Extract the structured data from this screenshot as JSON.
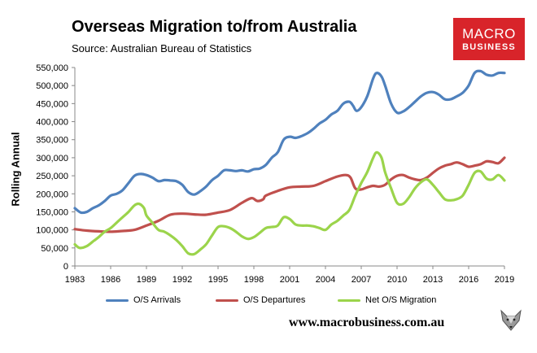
{
  "header": {
    "title": "Overseas Migration to/from Australia",
    "subtitle": "Source: Australian Bureau of Statistics"
  },
  "brand": {
    "line1": "MACRO",
    "line2": "BUSINESS",
    "website": "www.macrobusiness.com.au",
    "logo_icon": "fox-head-icon"
  },
  "colors": {
    "arrivals": "#4f81bd",
    "departures": "#c0504d",
    "net": "#9bd44b",
    "brand_red": "#d8242a"
  },
  "chart_data": {
    "type": "line",
    "title": "Overseas Migration to/from Australia",
    "subtitle": "Source: Australian Bureau of Statistics",
    "xlabel": "",
    "ylabel": "Rolling Annual",
    "xlim": [
      1983,
      2019
    ],
    "ylim": [
      0,
      550000
    ],
    "x_ticks": [
      1983,
      1986,
      1989,
      1992,
      1995,
      1998,
      2001,
      2004,
      2007,
      2010,
      2013,
      2016,
      2019
    ],
    "y_ticks": [
      0,
      50000,
      100000,
      150000,
      200000,
      250000,
      300000,
      350000,
      400000,
      450000,
      500000,
      550000
    ],
    "y_tick_labels": [
      "0",
      "50,000",
      "100,000",
      "150,000",
      "200,000",
      "250,000",
      "300,000",
      "350,000",
      "400,000",
      "450,000",
      "500,000",
      "550,000"
    ],
    "legend_position": "bottom",
    "series": [
      {
        "name": "O/S Arrivals",
        "color": "#4f81bd",
        "points": [
          [
            1983,
            160000
          ],
          [
            1983.5,
            148000
          ],
          [
            1984,
            150000
          ],
          [
            1984.5,
            160000
          ],
          [
            1985,
            168000
          ],
          [
            1985.5,
            180000
          ],
          [
            1986,
            195000
          ],
          [
            1986.5,
            200000
          ],
          [
            1987,
            210000
          ],
          [
            1987.5,
            230000
          ],
          [
            1988,
            250000
          ],
          [
            1988.5,
            255000
          ],
          [
            1989,
            252000
          ],
          [
            1989.5,
            245000
          ],
          [
            1990,
            235000
          ],
          [
            1990.5,
            238000
          ],
          [
            1991,
            237000
          ],
          [
            1991.5,
            235000
          ],
          [
            1992,
            225000
          ],
          [
            1992.5,
            205000
          ],
          [
            1993,
            198000
          ],
          [
            1993.5,
            207000
          ],
          [
            1994,
            220000
          ],
          [
            1994.5,
            238000
          ],
          [
            1995,
            250000
          ],
          [
            1995.5,
            265000
          ],
          [
            1996,
            265000
          ],
          [
            1996.5,
            263000
          ],
          [
            1997,
            265000
          ],
          [
            1997.5,
            262000
          ],
          [
            1998,
            268000
          ],
          [
            1998.5,
            270000
          ],
          [
            1999,
            280000
          ],
          [
            1999.5,
            300000
          ],
          [
            2000,
            315000
          ],
          [
            2000.5,
            350000
          ],
          [
            2001,
            358000
          ],
          [
            2001.5,
            355000
          ],
          [
            2002,
            360000
          ],
          [
            2002.5,
            368000
          ],
          [
            2003,
            380000
          ],
          [
            2003.5,
            395000
          ],
          [
            2004,
            405000
          ],
          [
            2004.5,
            420000
          ],
          [
            2005,
            430000
          ],
          [
            2005.5,
            450000
          ],
          [
            2006,
            455000
          ],
          [
            2006.3,
            445000
          ],
          [
            2006.6,
            430000
          ],
          [
            2007,
            440000
          ],
          [
            2007.5,
            470000
          ],
          [
            2008,
            520000
          ],
          [
            2008.3,
            535000
          ],
          [
            2008.7,
            525000
          ],
          [
            2009,
            500000
          ],
          [
            2009.5,
            450000
          ],
          [
            2010,
            425000
          ],
          [
            2010.5,
            428000
          ],
          [
            2011,
            440000
          ],
          [
            2011.5,
            455000
          ],
          [
            2012,
            470000
          ],
          [
            2012.5,
            480000
          ],
          [
            2013,
            482000
          ],
          [
            2013.5,
            475000
          ],
          [
            2014,
            462000
          ],
          [
            2014.5,
            462000
          ],
          [
            2015,
            470000
          ],
          [
            2015.5,
            480000
          ],
          [
            2016,
            500000
          ],
          [
            2016.5,
            535000
          ],
          [
            2017,
            540000
          ],
          [
            2017.5,
            530000
          ],
          [
            2018,
            528000
          ],
          [
            2018.5,
            535000
          ],
          [
            2019,
            535000
          ]
        ]
      },
      {
        "name": "O/S Departures",
        "color": "#c0504d",
        "points": [
          [
            1983,
            102000
          ],
          [
            1984,
            98000
          ],
          [
            1985,
            96000
          ],
          [
            1986,
            95000
          ],
          [
            1987,
            97000
          ],
          [
            1988,
            100000
          ],
          [
            1989,
            112000
          ],
          [
            1990,
            125000
          ],
          [
            1991,
            142000
          ],
          [
            1992,
            145000
          ],
          [
            1993,
            143000
          ],
          [
            1994,
            142000
          ],
          [
            1995,
            148000
          ],
          [
            1996,
            155000
          ],
          [
            1997,
            175000
          ],
          [
            1997.8,
            188000
          ],
          [
            1998.3,
            180000
          ],
          [
            1998.8,
            185000
          ],
          [
            1999,
            195000
          ],
          [
            2000,
            208000
          ],
          [
            2001,
            218000
          ],
          [
            2002,
            220000
          ],
          [
            2003,
            222000
          ],
          [
            2004,
            235000
          ],
          [
            2005,
            248000
          ],
          [
            2005.7,
            252000
          ],
          [
            2006.1,
            245000
          ],
          [
            2006.5,
            215000
          ],
          [
            2007,
            212000
          ],
          [
            2007.5,
            218000
          ],
          [
            2008,
            222000
          ],
          [
            2008.5,
            220000
          ],
          [
            2009,
            225000
          ],
          [
            2009.5,
            240000
          ],
          [
            2010,
            250000
          ],
          [
            2010.5,
            252000
          ],
          [
            2011,
            245000
          ],
          [
            2011.5,
            240000
          ],
          [
            2012,
            238000
          ],
          [
            2012.5,
            245000
          ],
          [
            2013,
            258000
          ],
          [
            2013.5,
            270000
          ],
          [
            2014,
            278000
          ],
          [
            2014.5,
            282000
          ],
          [
            2015,
            287000
          ],
          [
            2015.5,
            282000
          ],
          [
            2016,
            275000
          ],
          [
            2016.5,
            278000
          ],
          [
            2017,
            282000
          ],
          [
            2017.5,
            290000
          ],
          [
            2018,
            288000
          ],
          [
            2018.5,
            285000
          ],
          [
            2019,
            300000
          ]
        ]
      },
      {
        "name": "Net O/S Migration",
        "color": "#9bd44b",
        "points": [
          [
            1983,
            60000
          ],
          [
            1983.4,
            50000
          ],
          [
            1984,
            55000
          ],
          [
            1984.6,
            70000
          ],
          [
            1985,
            80000
          ],
          [
            1985.5,
            95000
          ],
          [
            1986,
            105000
          ],
          [
            1986.5,
            120000
          ],
          [
            1987,
            135000
          ],
          [
            1987.5,
            150000
          ],
          [
            1988,
            168000
          ],
          [
            1988.4,
            172000
          ],
          [
            1988.8,
            160000
          ],
          [
            1989,
            140000
          ],
          [
            1989.5,
            120000
          ],
          [
            1990,
            100000
          ],
          [
            1990.5,
            95000
          ],
          [
            1991,
            85000
          ],
          [
            1991.5,
            72000
          ],
          [
            1992,
            55000
          ],
          [
            1992.5,
            35000
          ],
          [
            1993,
            33000
          ],
          [
            1993.5,
            45000
          ],
          [
            1994,
            60000
          ],
          [
            1994.5,
            85000
          ],
          [
            1995,
            108000
          ],
          [
            1995.5,
            110000
          ],
          [
            1996,
            105000
          ],
          [
            1996.5,
            95000
          ],
          [
            1997,
            82000
          ],
          [
            1997.5,
            75000
          ],
          [
            1998,
            80000
          ],
          [
            1998.5,
            92000
          ],
          [
            1999,
            105000
          ],
          [
            1999.5,
            108000
          ],
          [
            2000,
            112000
          ],
          [
            2000.5,
            135000
          ],
          [
            2001,
            130000
          ],
          [
            2001.5,
            115000
          ],
          [
            2002,
            112000
          ],
          [
            2002.5,
            112000
          ],
          [
            2003,
            110000
          ],
          [
            2003.5,
            105000
          ],
          [
            2004,
            100000
          ],
          [
            2004.5,
            115000
          ],
          [
            2005,
            125000
          ],
          [
            2005.5,
            140000
          ],
          [
            2006,
            155000
          ],
          [
            2006.5,
            195000
          ],
          [
            2007,
            230000
          ],
          [
            2007.5,
            260000
          ],
          [
            2008,
            300000
          ],
          [
            2008.3,
            315000
          ],
          [
            2008.7,
            300000
          ],
          [
            2009,
            260000
          ],
          [
            2009.5,
            215000
          ],
          [
            2010,
            175000
          ],
          [
            2010.5,
            172000
          ],
          [
            2011,
            190000
          ],
          [
            2011.5,
            215000
          ],
          [
            2012,
            232000
          ],
          [
            2012.5,
            240000
          ],
          [
            2013,
            225000
          ],
          [
            2013.5,
            205000
          ],
          [
            2014,
            185000
          ],
          [
            2014.5,
            182000
          ],
          [
            2015,
            185000
          ],
          [
            2015.5,
            195000
          ],
          [
            2016,
            225000
          ],
          [
            2016.5,
            258000
          ],
          [
            2017,
            262000
          ],
          [
            2017.5,
            242000
          ],
          [
            2018,
            240000
          ],
          [
            2018.5,
            252000
          ],
          [
            2019,
            237000
          ]
        ]
      }
    ]
  }
}
